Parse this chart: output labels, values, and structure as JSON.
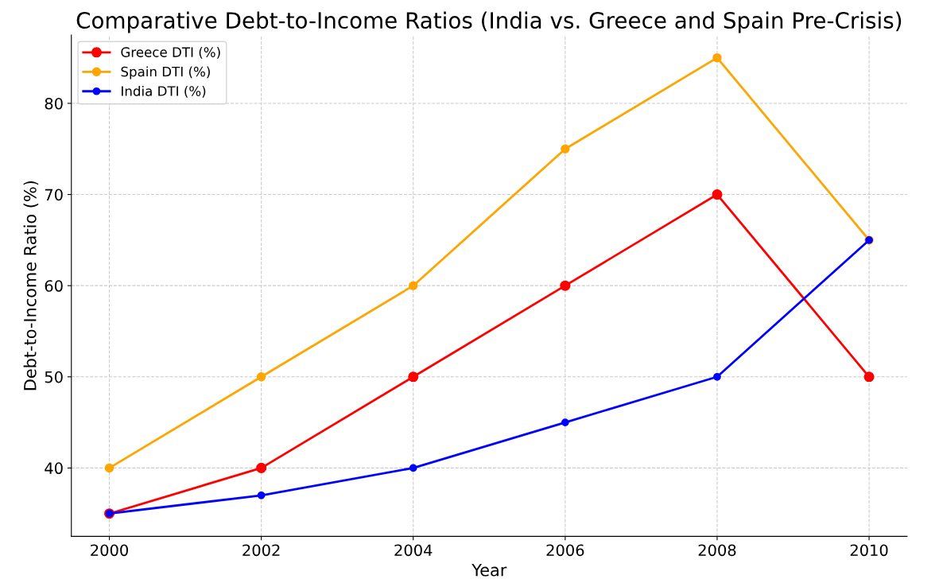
{
  "chart_data": {
    "type": "line",
    "title": "Comparative Debt-to-Income Ratios (India vs. Greece and Spain Pre-Crisis)",
    "xlabel": "Year",
    "ylabel": "Debt-to-Income Ratio (%)",
    "x": [
      2000,
      2002,
      2004,
      2006,
      2008,
      2010
    ],
    "series": [
      {
        "name": "Greece DTI (%)",
        "color": "#ff0000",
        "values": [
          35,
          40,
          50,
          60,
          70,
          50
        ]
      },
      {
        "name": "Spain DTI (%)",
        "color": "#ffa500",
        "values": [
          40,
          50,
          60,
          75,
          85,
          65
        ]
      },
      {
        "name": "India DTI (%)",
        "color": "#0000ff",
        "values": [
          35,
          37,
          40,
          45,
          50,
          65
        ]
      }
    ],
    "xlim": [
      1999.5,
      2010.5
    ],
    "xticks": [
      2000,
      2002,
      2004,
      2006,
      2008,
      2010
    ],
    "ylim": [
      32.5,
      87.5
    ],
    "yticks": [
      40,
      50,
      60,
      70,
      80
    ],
    "grid": true,
    "legend": "top left",
    "marker": "circle",
    "line_style": "solid"
  }
}
